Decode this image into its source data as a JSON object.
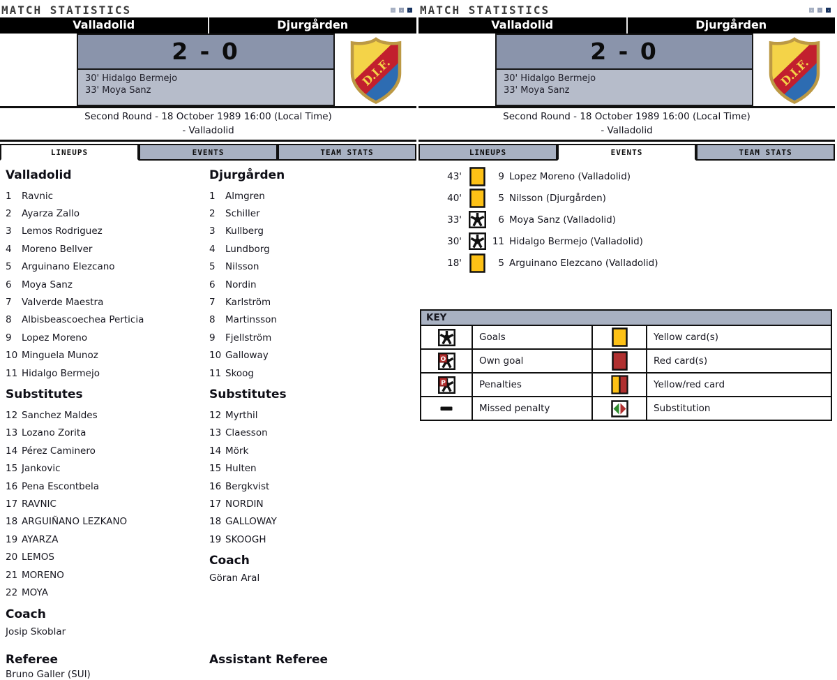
{
  "title": "MATCH STATISTICS",
  "teams": {
    "home": "Valladolid",
    "away": "Djurgården"
  },
  "score": "2 - 0",
  "scorers": [
    "30' Hidalgo Bermejo",
    "33' Moya Sanz"
  ],
  "match_info": {
    "line1": "Second Round - 18 October 1989 16:00 (Local Time)",
    "line2": "- Valladolid"
  },
  "tabs": [
    "LINEUPS",
    "EVENTS",
    "TEAM STATS"
  ],
  "lineups": {
    "home": {
      "name": "Valladolid",
      "players": [
        [
          "1",
          "Ravnic"
        ],
        [
          "2",
          "Ayarza Zallo"
        ],
        [
          "3",
          "Lemos Rodriguez"
        ],
        [
          "4",
          "Moreno Bellver"
        ],
        [
          "5",
          "Arguinano Elezcano"
        ],
        [
          "6",
          "Moya Sanz"
        ],
        [
          "7",
          "Valverde Maestra"
        ],
        [
          "8",
          "Albisbeascoechea Perticia"
        ],
        [
          "9",
          "Lopez Moreno"
        ],
        [
          "10",
          "Minguela Munoz"
        ],
        [
          "11",
          "Hidalgo Bermejo"
        ]
      ],
      "subs_label": "Substitutes",
      "subs": [
        [
          "12",
          "Sanchez Maldes"
        ],
        [
          "13",
          "Lozano Zorita"
        ],
        [
          "14",
          "Pérez Caminero"
        ],
        [
          "15",
          "Jankovic"
        ],
        [
          "16",
          "Pena Escontbela"
        ],
        [
          "17",
          "RAVNIC"
        ],
        [
          "18",
          "ARGUIÑANO LEZKANO"
        ],
        [
          "19",
          "AYARZA"
        ],
        [
          "20",
          "LEMOS"
        ],
        [
          "21",
          "MORENO"
        ],
        [
          "22",
          "MOYA"
        ]
      ],
      "coach_label": "Coach",
      "coach": "Josip Skoblar"
    },
    "away": {
      "name": "Djurgården",
      "players": [
        [
          "1",
          "Almgren"
        ],
        [
          "2",
          "Schiller"
        ],
        [
          "3",
          "Kullberg"
        ],
        [
          "4",
          "Lundborg"
        ],
        [
          "5",
          "Nilsson"
        ],
        [
          "6",
          "Nordin"
        ],
        [
          "7",
          "Karlström"
        ],
        [
          "8",
          "Martinsson"
        ],
        [
          "9",
          "Fjellström"
        ],
        [
          "10",
          "Galloway"
        ],
        [
          "11",
          "Skoog"
        ]
      ],
      "subs_label": "Substitutes",
      "subs": [
        [
          "12",
          "Myrthil"
        ],
        [
          "13",
          "Claesson"
        ],
        [
          "14",
          "Mörk"
        ],
        [
          "15",
          "Hulten"
        ],
        [
          "16",
          "Bergkvist"
        ],
        [
          "17",
          "NORDIN"
        ],
        [
          "18",
          "GALLOWAY"
        ],
        [
          "19",
          "SKOOGH"
        ]
      ],
      "coach_label": "Coach",
      "coach": "Göran Aral"
    }
  },
  "officials": {
    "referee_label": "Referee",
    "referee": "Bruno Galler (SUI)",
    "assistant_label": "Assistant Referee"
  },
  "events": [
    {
      "time": "43'",
      "icon": "yellow-card",
      "no": "9",
      "name": "Lopez Moreno (Valladolid)"
    },
    {
      "time": "40'",
      "icon": "yellow-card",
      "no": "5",
      "name": "Nilsson (Djurgården)"
    },
    {
      "time": "33'",
      "icon": "goal",
      "no": "6",
      "name": "Moya Sanz (Valladolid)"
    },
    {
      "time": "30'",
      "icon": "goal",
      "no": "11",
      "name": "Hidalgo Bermejo (Valladolid)"
    },
    {
      "time": "18'",
      "icon": "yellow-card",
      "no": "5",
      "name": "Arguinano Elezcano (Valladolid)"
    }
  ],
  "key": {
    "title": "KEY",
    "rows": [
      {
        "left_icon": "goal",
        "left_label": "Goals",
        "right_icon": "yellow-card",
        "right_label": "Yellow card(s)"
      },
      {
        "left_icon": "own-goal",
        "left_label": "Own goal",
        "right_icon": "red-card",
        "right_label": "Red card(s)"
      },
      {
        "left_icon": "penalty",
        "left_label": "Penalties",
        "right_icon": "yellow-red-card",
        "right_label": "Yellow/red card"
      },
      {
        "left_icon": "missed-penalty",
        "left_label": "Missed penalty",
        "right_icon": "substitution",
        "right_label": "Substitution"
      }
    ]
  },
  "colors": {
    "panel_gray_blue": "#a8b1c2",
    "score_box_dark": "#8a94ab",
    "score_box_light": "#b6bcca",
    "yellow_card": "#fdc116",
    "red_card": "#b03030",
    "substitution_green": "#2e8b2e",
    "indicator_navy": "#16325f",
    "crest_yellow": "#f4d348",
    "crest_red": "#c21f2e",
    "crest_blue": "#2d6cb2"
  }
}
